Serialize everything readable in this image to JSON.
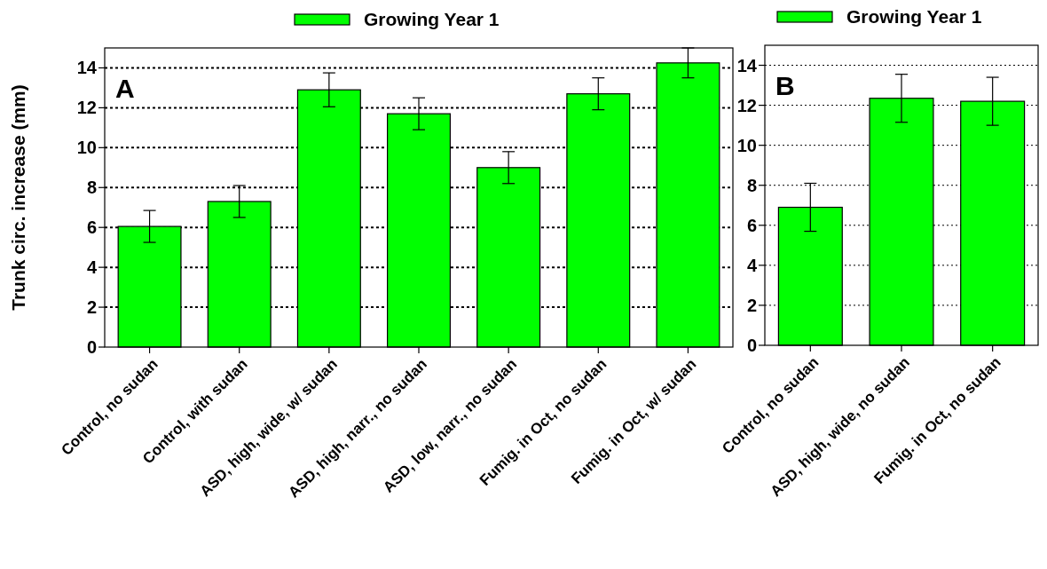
{
  "chart_data": [
    {
      "type": "bar",
      "ylabel": "Trunk circ. increase (mm)",
      "annotations": [
        "A"
      ],
      "categories": [
        "Control, no sudan",
        "Control, with sudan",
        "ASD, high, wide, w/ sudan",
        "ASD, high, narr., no sudan",
        "ASD, low, narr., no sudan",
        "Fumig. in Oct, no sudan",
        "Fumig. in Oct, w/ sudan"
      ],
      "series": [
        {
          "name": "Growing Year 1",
          "color": "#00ff00",
          "values": [
            6.05,
            7.3,
            12.9,
            11.7,
            9.0,
            12.7,
            14.25
          ],
          "errors": [
            0.8,
            0.8,
            0.85,
            0.8,
            0.8,
            0.8,
            0.75
          ]
        }
      ],
      "ylim": [
        0,
        15
      ],
      "yticks": [
        0,
        2,
        4,
        6,
        8,
        10,
        12,
        14
      ],
      "grid": "y",
      "legend": "top"
    },
    {
      "type": "bar",
      "annotations": [
        "B"
      ],
      "categories": [
        "Control, no sudan",
        "ASD, high, wide, no sudan",
        "Fumig. in Oct, no sudan"
      ],
      "series": [
        {
          "name": "Growing Year 1",
          "color": "#00ff00",
          "values": [
            6.9,
            12.35,
            12.2
          ],
          "errors": [
            1.2,
            1.2,
            1.2
          ]
        }
      ],
      "ylim": [
        0,
        15
      ],
      "yticks": [
        0,
        2,
        4,
        6,
        8,
        10,
        12,
        14
      ],
      "grid": "y",
      "legend": "top"
    }
  ]
}
